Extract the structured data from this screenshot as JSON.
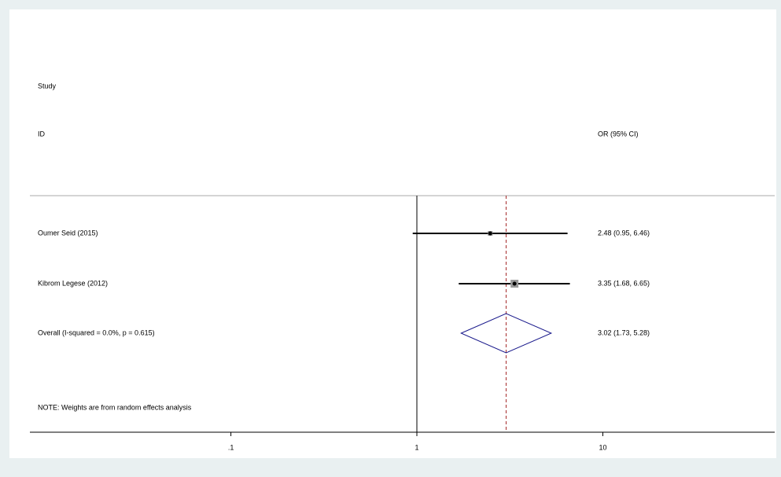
{
  "chart_data": {
    "type": "forest",
    "headers": [
      "Study",
      "ID"
    ],
    "effect_header": "OR (95% CI)",
    "categories": [
      "Oumer Seid (2015)",
      "Kibrom Legese (2012)"
    ],
    "values": [
      2.48,
      3.35
    ],
    "lower": [
      0.95,
      1.68
    ],
    "upper": [
      6.46,
      6.65
    ],
    "value_labels": [
      "2.48 (0.95, 6.46)",
      "3.35 (1.68, 6.65)"
    ],
    "overall": {
      "label": "Overall  (I-squared = 0.0%, p = 0.615)",
      "value": 3.02,
      "lower": 1.73,
      "upper": 5.28,
      "value_label": "3.02 (1.73, 5.28)"
    },
    "note": "NOTE: Weights are from random effects analysis",
    "xscale": "log",
    "xlim": [
      0.0083,
      84
    ],
    "xticks": [
      {
        "value": 0.1,
        "label": ".1"
      },
      1,
      10
    ],
    "null_line": 1,
    "overall_line_color": "#a52a2a",
    "diamond_color": "#1a1a8c",
    "box_color": "#999999"
  }
}
